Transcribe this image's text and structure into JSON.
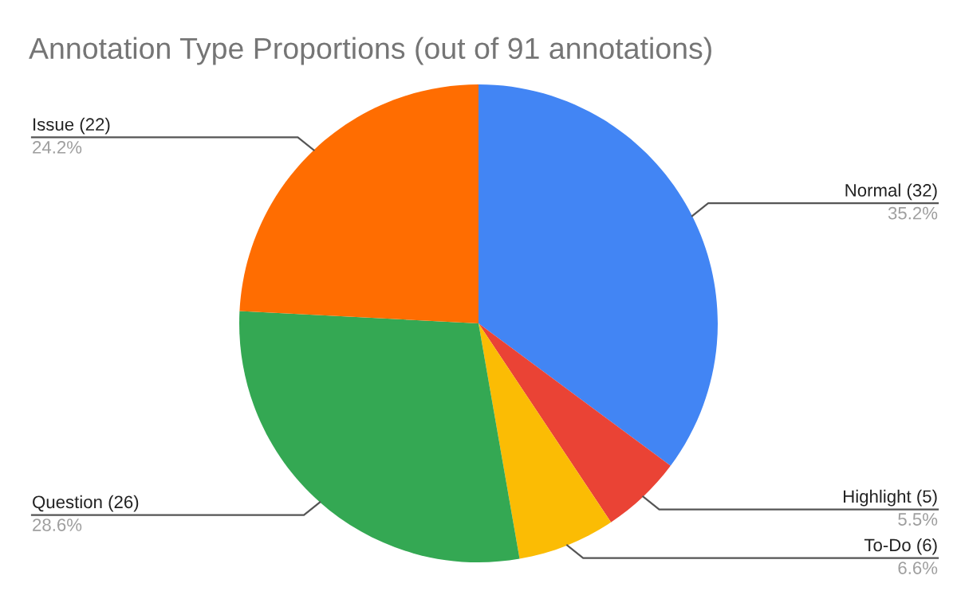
{
  "chart_data": {
    "type": "pie",
    "title": "Annotation Type Proportions (out of 91 annotations)",
    "categories": [
      "Normal (32)",
      "Highlight (5)",
      "To-Do (6)",
      "Question (26)",
      "Issue (22)"
    ],
    "values": [
      35.2,
      5.5,
      6.6,
      28.6,
      24.2
    ],
    "colors": [
      "#4285f4",
      "#ea4335",
      "#fbbc04",
      "#34a853",
      "#ff6d01"
    ],
    "value_labels": [
      "35.2%",
      "5.5%",
      "6.6%",
      "28.6%",
      "24.2%"
    ]
  }
}
